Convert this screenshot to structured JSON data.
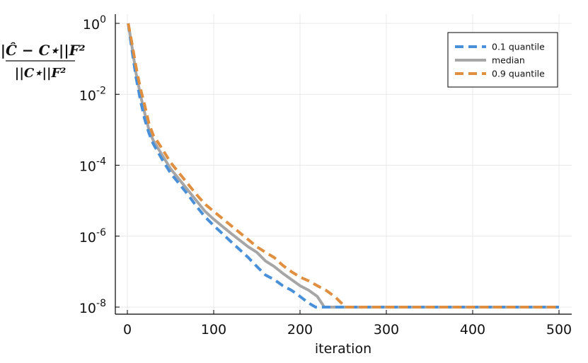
{
  "chart_data": {
    "type": "line",
    "xlabel": "iteration",
    "ylabel": {
      "numerator": "||Ĉ − C⋆||F²",
      "denominator": "||C⋆||F²"
    },
    "xlim": [
      0,
      500
    ],
    "ylim": [
      1e-08,
      1
    ],
    "yscale": "log",
    "grid": true,
    "legend_position": "top-right",
    "x_ticks": [
      "0",
      "100",
      "200",
      "300",
      "400",
      "500"
    ],
    "y_ticks": [
      {
        "base": "10",
        "exp": "0"
      },
      {
        "base": "10",
        "exp": "-2"
      },
      {
        "base": "10",
        "exp": "-4"
      },
      {
        "base": "10",
        "exp": "-6"
      },
      {
        "base": "10",
        "exp": "-8"
      }
    ],
    "series": [
      {
        "name": "0.1 quantile",
        "color": "#4a90d9",
        "dash": "dashed",
        "x": [
          1,
          5,
          10,
          15,
          20,
          25,
          30,
          40,
          50,
          60,
          70,
          80,
          90,
          100,
          120,
          140,
          150,
          160,
          170,
          180,
          190,
          200,
          210,
          218,
          220,
          300,
          400,
          500
        ],
        "y": [
          1,
          0.2,
          0.03,
          0.007,
          0.002,
          0.0008,
          0.0004,
          0.00015,
          6e-05,
          3e-05,
          1.5e-05,
          7e-06,
          3.5e-06,
          2e-06,
          7e-07,
          2.5e-07,
          1.4e-07,
          8e-08,
          6e-08,
          4e-08,
          3e-08,
          2e-08,
          1.3e-08,
          1e-08,
          1e-08,
          1e-08,
          1e-08,
          1e-08
        ]
      },
      {
        "name": "median",
        "color": "#a6a6a6",
        "dash": "solid",
        "x": [
          1,
          5,
          10,
          15,
          20,
          25,
          30,
          40,
          50,
          60,
          70,
          80,
          90,
          100,
          120,
          140,
          150,
          160,
          170,
          180,
          190,
          200,
          210,
          220,
          226,
          228,
          300,
          400,
          500
        ],
        "y": [
          1,
          0.25,
          0.04,
          0.01,
          0.003,
          0.001,
          0.0005,
          0.0002,
          8e-05,
          4e-05,
          2e-05,
          1e-05,
          5e-06,
          3e-06,
          1.2e-06,
          5e-07,
          3.5e-07,
          2e-07,
          1.4e-07,
          9e-08,
          6e-08,
          4e-08,
          3e-08,
          2e-08,
          1.2e-08,
          1e-08,
          1e-08,
          1e-08,
          1e-08
        ]
      },
      {
        "name": "0.9 quantile",
        "color": "#df8f3f",
        "dash": "dashed",
        "x": [
          1,
          5,
          10,
          15,
          20,
          25,
          30,
          40,
          50,
          60,
          70,
          80,
          90,
          100,
          120,
          140,
          150,
          160,
          170,
          180,
          190,
          200,
          210,
          220,
          230,
          240,
          248,
          252,
          300,
          400,
          500
        ],
        "y": [
          1,
          0.3,
          0.06,
          0.015,
          0.005,
          0.0015,
          0.0007,
          0.0003,
          0.00012,
          6e-05,
          3e-05,
          1.5e-05,
          8e-06,
          5e-06,
          2e-06,
          8e-07,
          5e-07,
          3.5e-07,
          2.5e-07,
          1.5e-07,
          1e-07,
          7e-08,
          5.5e-08,
          4e-08,
          3e-08,
          2e-08,
          1.3e-08,
          1e-08,
          1e-08,
          1e-08,
          1e-08
        ]
      }
    ]
  }
}
